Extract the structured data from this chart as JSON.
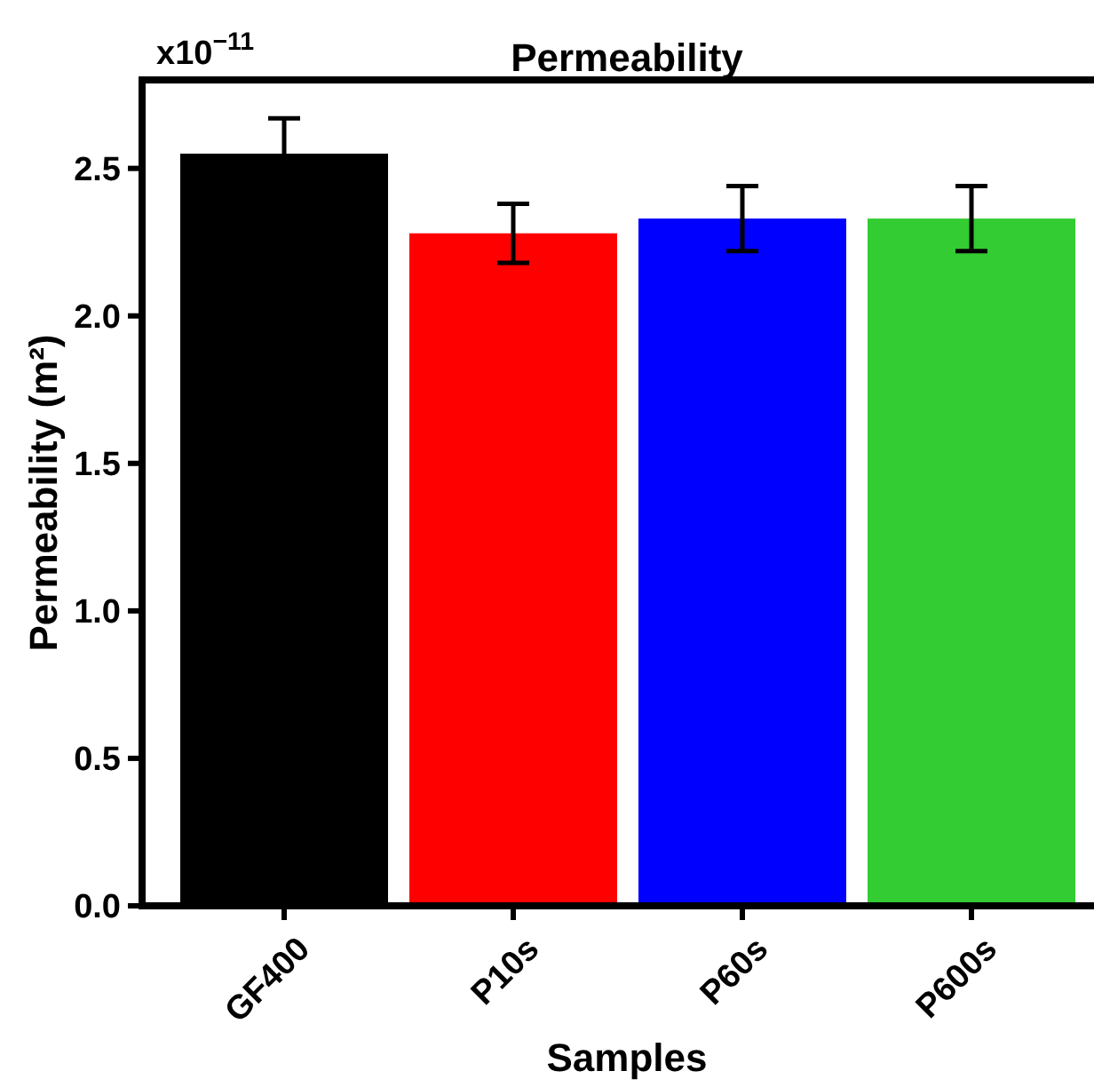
{
  "chart_data": {
    "type": "bar",
    "title": "Permeability",
    "xlabel": "Samples",
    "ylabel": "Permeability (m²)",
    "annotations": [
      "x10$^{−11}$"
    ],
    "categories": [
      "GF400",
      "P10s",
      "P60s",
      "P600s"
    ],
    "values": [
      2.55,
      2.28,
      2.33,
      2.33
    ],
    "colors": [
      "#000000",
      "#ff0000",
      "#0000ff",
      "#33cc33"
    ],
    "errors": [
      0.12,
      0.1,
      0.11,
      0.11
    ],
    "ylim": [
      0,
      2.8
    ],
    "yticks": [
      {
        "value": 0,
        "label": "0.0"
      },
      0.5,
      {
        "value": 1,
        "label": "1.0"
      },
      1.5,
      {
        "value": 2,
        "label": "2.0"
      },
      2.5
    ],
    "grid": false
  }
}
